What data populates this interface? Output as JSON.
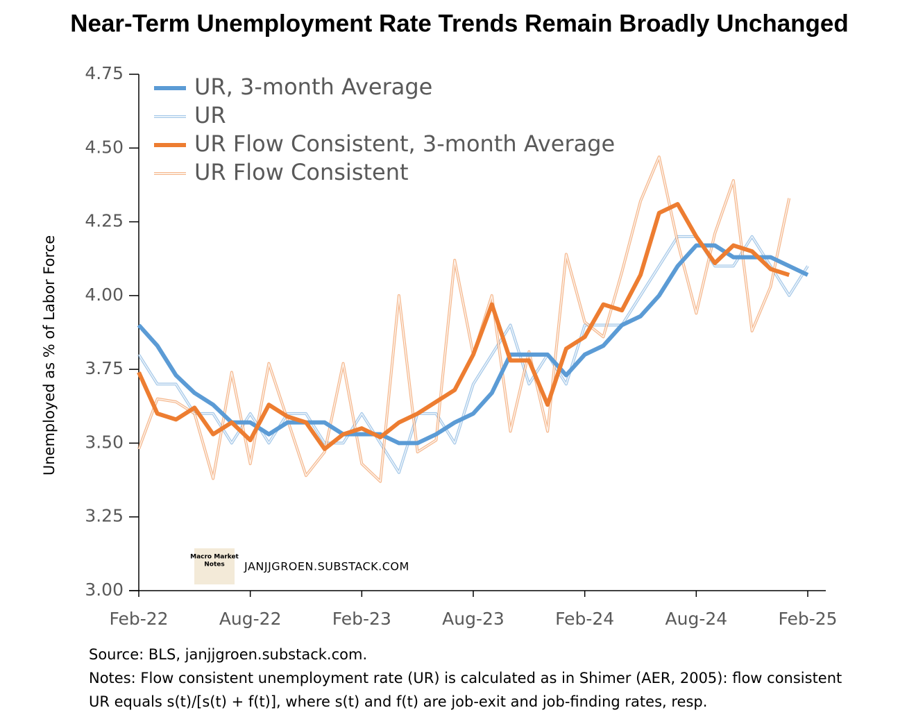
{
  "chart_data": {
    "type": "line",
    "title": "Near-Term Unemployment Rate Trends Remain Broadly Unchanged",
    "y_label": "Unemployed as % of Labor Force",
    "categories": [
      "Feb-22",
      null,
      null,
      null,
      null,
      null,
      "Aug-22",
      null,
      null,
      null,
      null,
      null,
      "Feb-23",
      null,
      null,
      null,
      null,
      null,
      "Aug-23",
      null,
      null,
      null,
      null,
      null,
      "Feb-24",
      null,
      null,
      null,
      null,
      null,
      "Aug-24",
      null,
      null,
      null,
      null,
      null,
      "Feb-25"
    ],
    "ylim": [
      3.0,
      4.75
    ],
    "yticks": [
      {
        "value": 3.0,
        "label": "3.00"
      },
      3.25,
      {
        "value": 3.5,
        "label": "3.50"
      },
      3.75,
      {
        "value": 4.0,
        "label": "4.00"
      },
      4.25,
      {
        "value": 4.5,
        "label": "4.50"
      },
      4.75
    ],
    "legend": "top-left",
    "series": [
      {
        "name": "UR, 3-month Average",
        "color": "#5b9bd5",
        "width": 6,
        "values": [
          3.9,
          3.83,
          3.73,
          3.67,
          3.63,
          3.57,
          3.57,
          3.53,
          3.57,
          3.57,
          3.57,
          3.53,
          3.53,
          3.53,
          3.5,
          3.5,
          3.53,
          3.57,
          3.6,
          3.67,
          3.8,
          3.8,
          3.8,
          3.73,
          3.8,
          3.83,
          3.9,
          3.93,
          4.0,
          4.1,
          4.17,
          4.17,
          4.13,
          4.13,
          4.13,
          4.1,
          4.07
        ]
      },
      {
        "name": "UR",
        "color": "#5b9bd5",
        "width": 2,
        "values": [
          3.8,
          3.7,
          3.7,
          3.6,
          3.6,
          3.5,
          3.6,
          3.5,
          3.6,
          3.6,
          3.5,
          3.5,
          3.6,
          3.5,
          3.4,
          3.6,
          3.6,
          3.5,
          3.7,
          3.8,
          3.9,
          3.7,
          3.8,
          3.7,
          3.9,
          3.9,
          3.9,
          4.0,
          4.1,
          4.2,
          4.2,
          4.1,
          4.1,
          4.2,
          4.1,
          4.0,
          4.1
        ]
      },
      {
        "name": "UR Flow Consistent, 3-month Average",
        "color": "#ed7d31",
        "width": 6,
        "values": [
          3.74,
          3.6,
          3.58,
          3.62,
          3.53,
          3.57,
          3.51,
          3.63,
          3.59,
          3.57,
          3.48,
          3.53,
          3.55,
          3.52,
          3.57,
          3.6,
          3.64,
          3.68,
          3.8,
          3.97,
          3.78,
          3.78,
          3.63,
          3.82,
          3.86,
          3.97,
          3.95,
          4.07,
          4.28,
          4.31,
          4.2,
          4.11,
          4.17,
          4.15,
          4.09,
          4.07,
          null
        ]
      },
      {
        "name": "UR Flow Consistent",
        "color": "#ed7d31",
        "width": 2,
        "values": [
          3.48,
          3.65,
          3.64,
          3.6,
          3.38,
          3.74,
          3.43,
          3.77,
          3.58,
          3.39,
          3.47,
          3.77,
          3.43,
          3.37,
          4.0,
          3.47,
          3.51,
          4.12,
          3.8,
          4.0,
          3.54,
          3.81,
          3.54,
          4.14,
          3.91,
          3.86,
          4.08,
          4.32,
          4.47,
          4.18,
          3.94,
          4.21,
          4.39,
          3.88,
          4.03,
          4.33,
          null
        ]
      }
    ],
    "watermark": "JANJJGROEN.SUBSTACK.COM",
    "logo_text": [
      "Macro Market",
      "Notes"
    ],
    "source": "Source: BLS, janjjgroen.substack.com.",
    "notes": [
      "Notes: Flow consistent unemployment rate (UR) is calculated as in Shimer (AER, 2005):  flow consistent",
      "UR equals s(t)/[s(t) + f(t)], where s(t) and f(t) are job-exit and job-finding rates, resp."
    ]
  }
}
